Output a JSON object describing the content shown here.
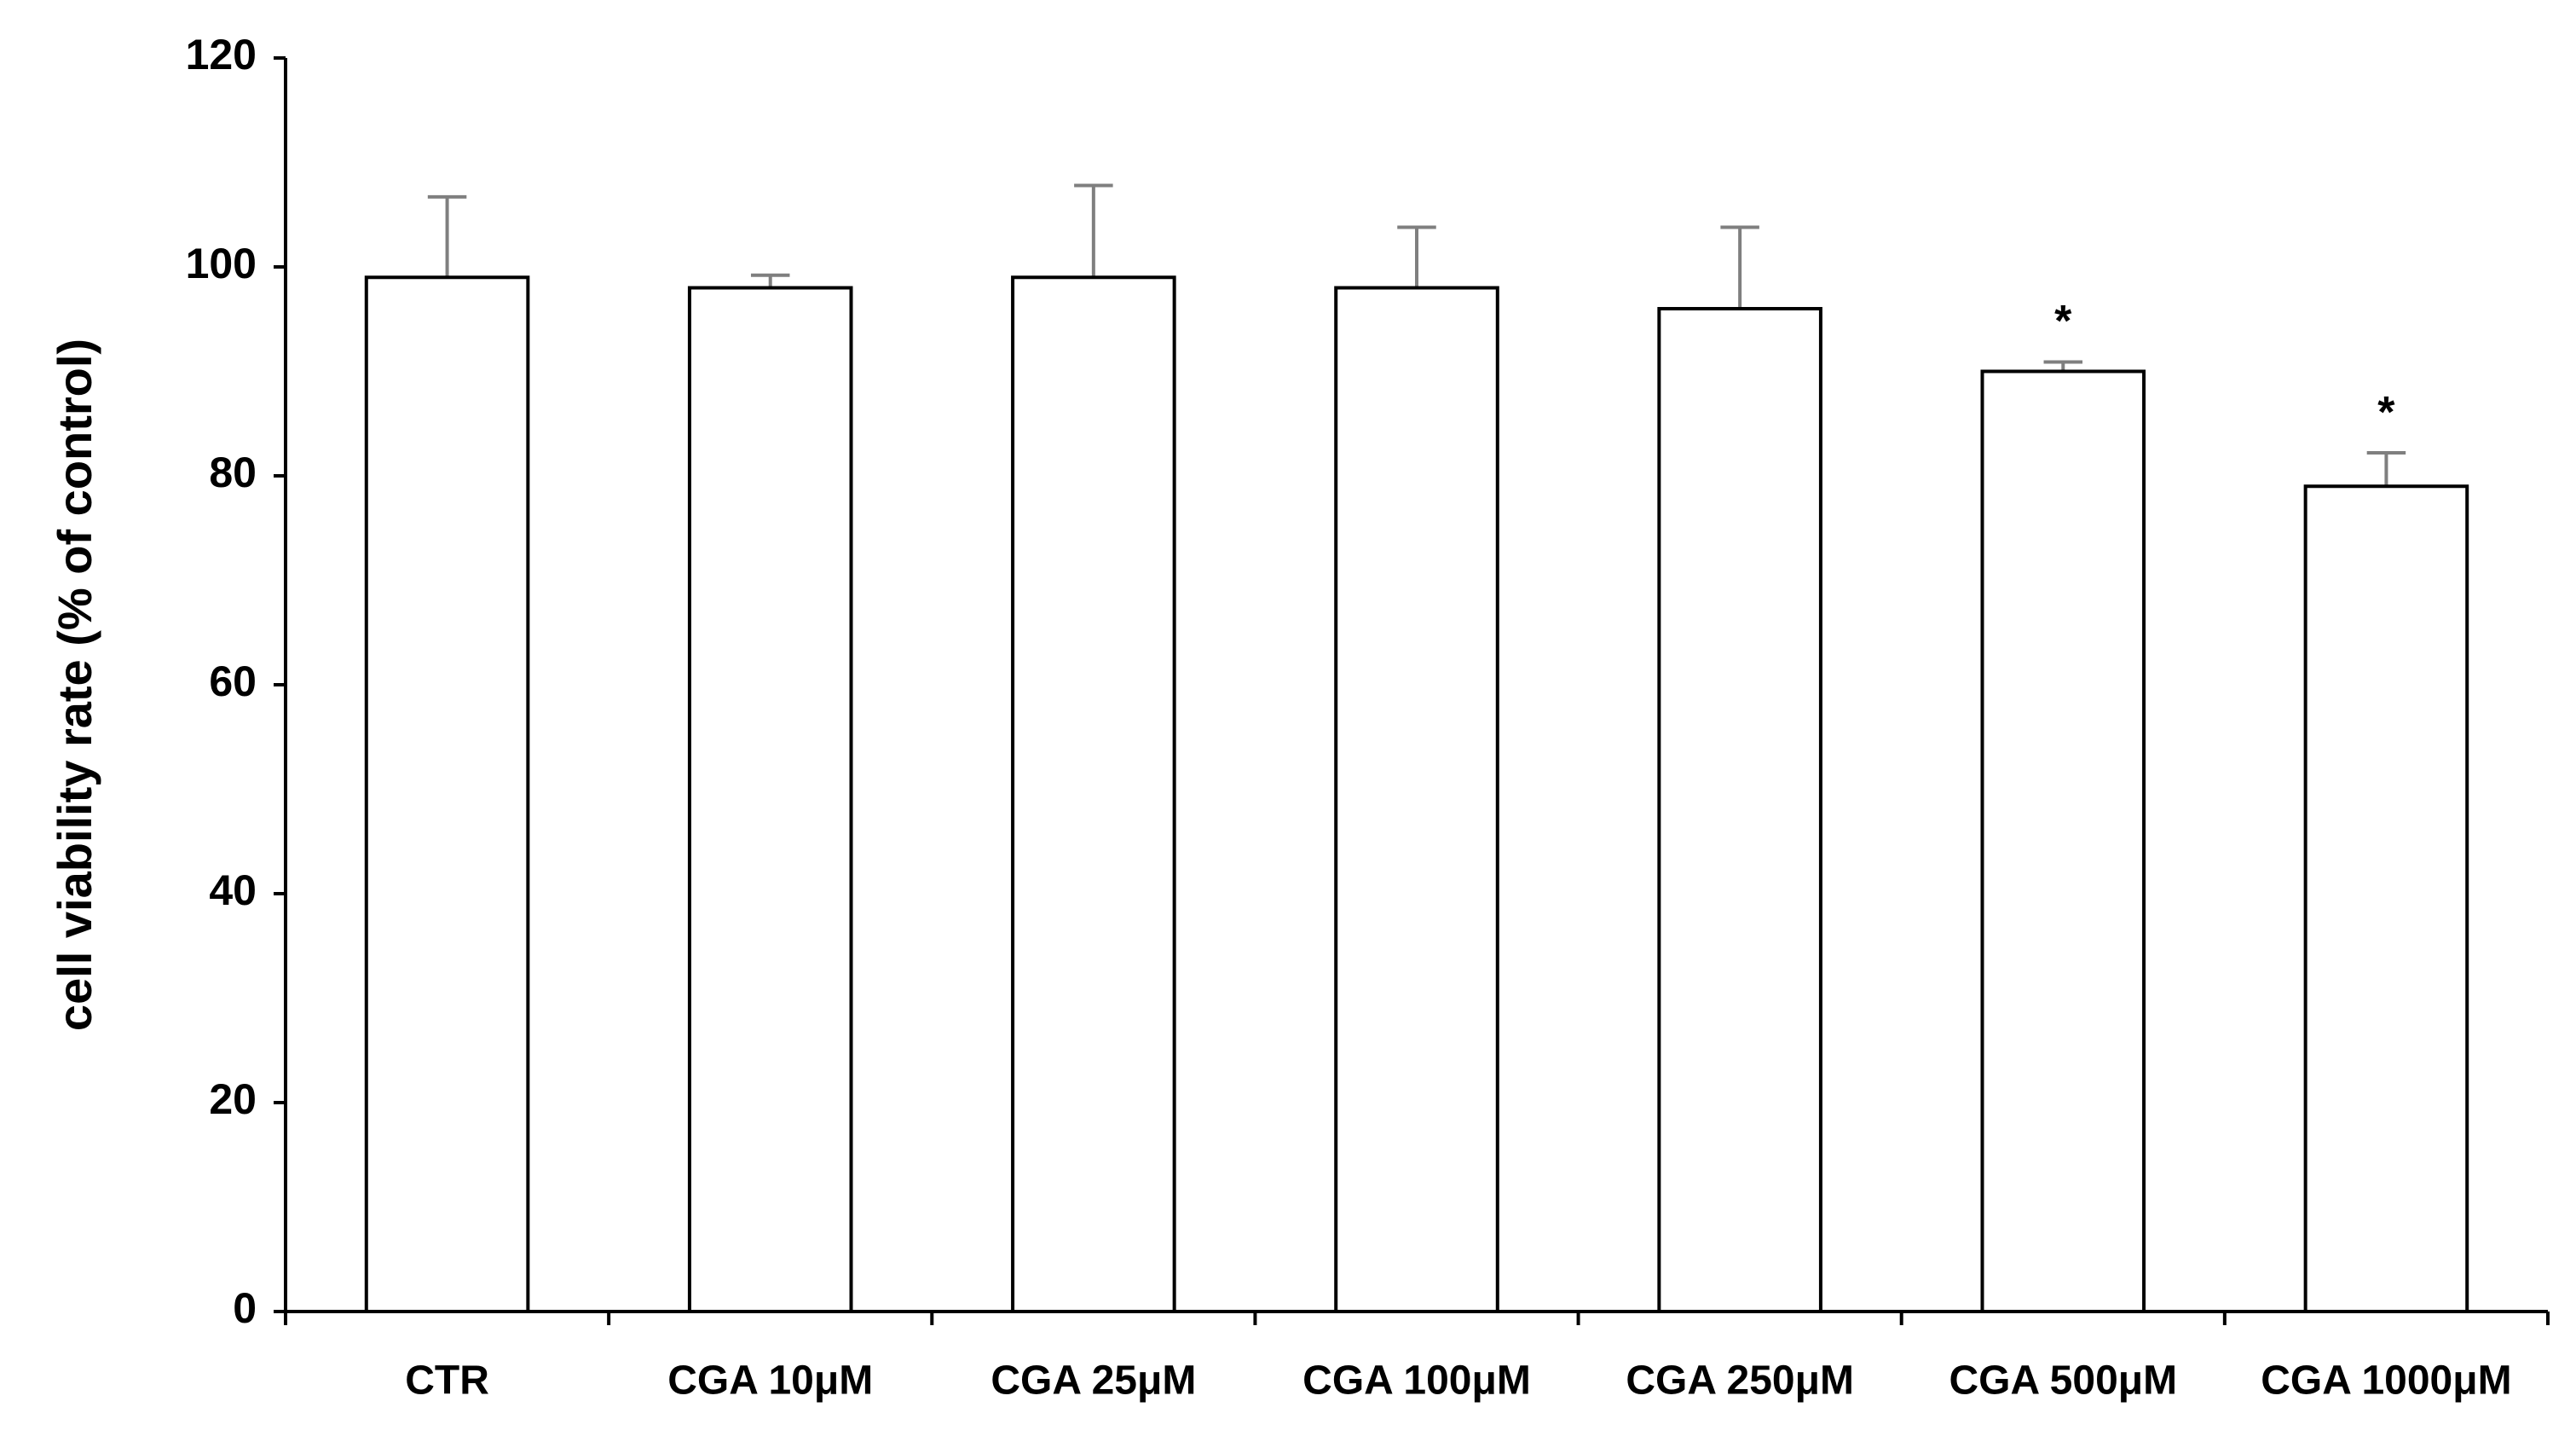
{
  "chart_data": {
    "type": "bar",
    "y_label": "cell viability rate  (% of control)",
    "categories": [
      "CTR",
      "CGA 10μM",
      "CGA 25μM",
      "CGA 100μM",
      "CGA 250μM",
      "CGA 500μM",
      "CGA 1000μM"
    ],
    "values": [
      99,
      98,
      99,
      98,
      96,
      90,
      79
    ],
    "errors": [
      7.7,
      1.2,
      8.8,
      5.8,
      7.8,
      0.9,
      3.2
    ],
    "significance": [
      null,
      null,
      null,
      null,
      null,
      "*",
      "*"
    ],
    "color": "#ffffff",
    "edge_color": "#000000",
    "error_color": "#7f7f7f",
    "ylim": [
      0,
      120
    ],
    "yticks": [
      0,
      20,
      40,
      60,
      80,
      100,
      120
    ],
    "grid": false
  }
}
